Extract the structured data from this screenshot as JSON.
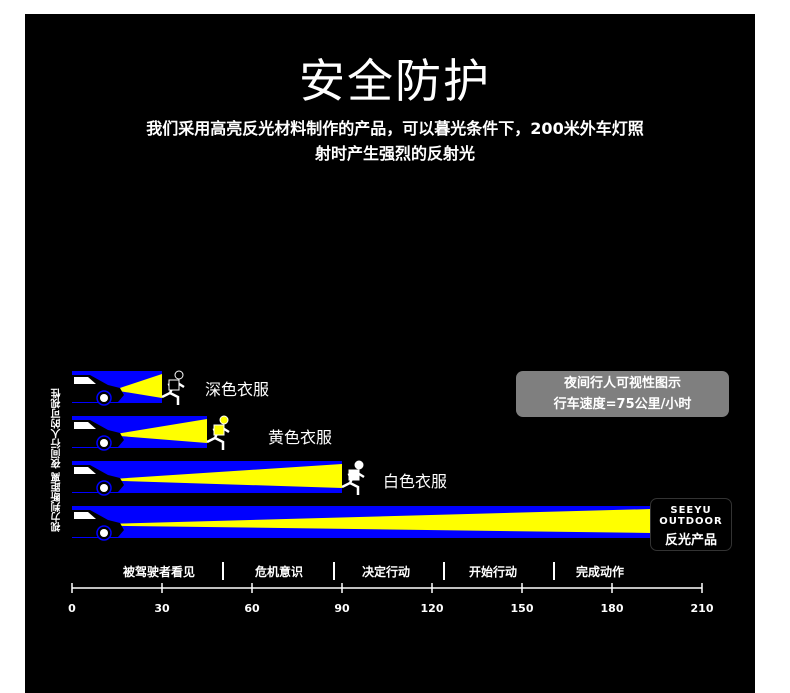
{
  "header": {
    "title": "安全防护",
    "subtitle_line1": "我们采用高亮反光材料制作的产品，可以暮光条件下，200米外车灯照",
    "subtitle_line2": "射时产生强烈的反射光"
  },
  "side_label": "视力判断距离   夜间行人的可视性",
  "info_box": {
    "line1": "夜间行人可视性图示",
    "line2": "行车速度=75公里/小时"
  },
  "brand": {
    "name": "SEEYU OUTDOOR",
    "product": "反光产品"
  },
  "colors": {
    "background": "#000000",
    "road": "#0000ff",
    "beam": "#ffff00",
    "text": "#ffffff"
  },
  "chart_data": {
    "type": "bar",
    "orientation": "horizontal",
    "categories": [
      "深色衣服",
      "黄色衣服",
      "白色衣服",
      "反光产品"
    ],
    "values": [
      30,
      45,
      90,
      193
    ],
    "xlim": [
      0,
      210
    ],
    "xticks": [
      "0",
      "30",
      "60",
      "90",
      "120",
      "150",
      "180",
      "210"
    ],
    "stages": [
      "被驾驶者看见",
      "危机意识",
      "决定行动",
      "开始行动",
      "完成动作"
    ]
  }
}
